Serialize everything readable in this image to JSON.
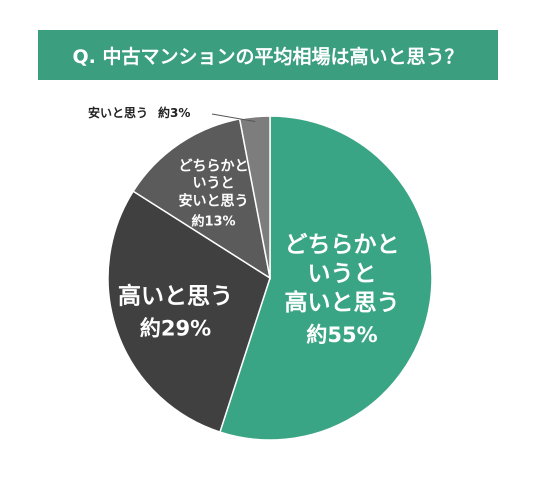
{
  "chart_data": {
    "type": "pie",
    "title": "Q. 中古マンションの平均相場は高いと思う？",
    "categories": [
      "どちらかと\nいうと\n高いと思う",
      "高いと思う",
      "どちらかと\nいうと\n安いと思う",
      "安いと思う"
    ],
    "values": [
      55,
      29,
      13,
      3
    ],
    "value_labels": [
      "約55%",
      "約29%",
      "約13%",
      "約3%"
    ],
    "colors": [
      "#3aa585",
      "#404040",
      "#5b5b5b",
      "#7d7d7d"
    ]
  }
}
